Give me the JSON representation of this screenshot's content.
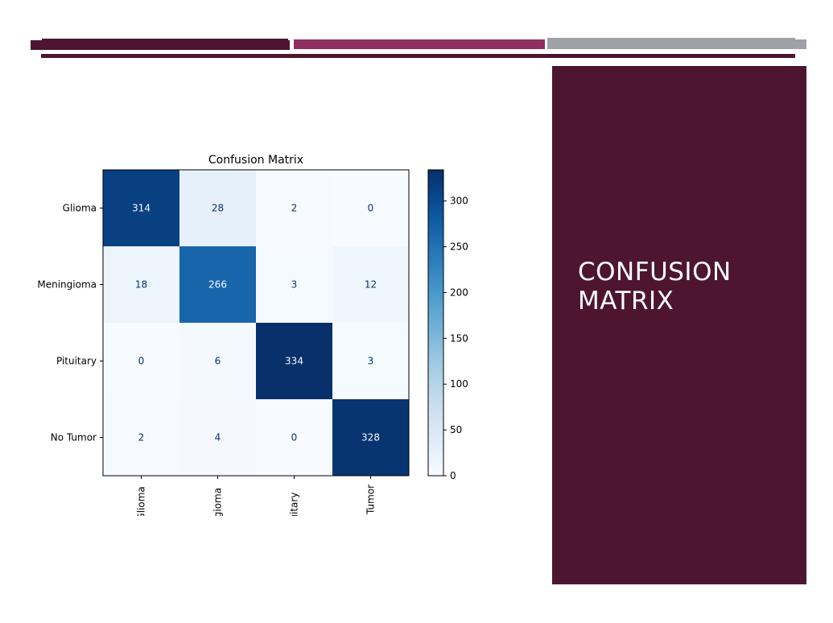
{
  "slide": {
    "title": "CONFUSION MATRIX",
    "colors": {
      "accent_dark": "#4e1530",
      "accent_mid": "#8f2f61",
      "accent_gray": "#9ea1a5",
      "panel": "#4e1530",
      "panel_text": "#ffffff"
    }
  },
  "chart_data": {
    "type": "heatmap",
    "title": "Confusion Matrix",
    "xlabel": "",
    "ylabel": "",
    "row_labels": [
      "Glioma",
      "Meningioma",
      "Pituitary",
      "No Tumor"
    ],
    "col_labels": [
      "Glioma",
      "Meningioma",
      "Pituitary",
      "No Tumor"
    ],
    "col_labels_visible": [
      "Glioma",
      "ingioma",
      "uitary",
      "Tumor"
    ],
    "values": [
      [
        314,
        28,
        2,
        0
      ],
      [
        18,
        266,
        3,
        12
      ],
      [
        0,
        6,
        334,
        3
      ],
      [
        2,
        4,
        0,
        328
      ]
    ],
    "colormap": "Blues",
    "colorbar_ticks": [
      0,
      50,
      100,
      150,
      200,
      250,
      300
    ],
    "vmin": 0,
    "vmax": 334,
    "grid": false
  }
}
